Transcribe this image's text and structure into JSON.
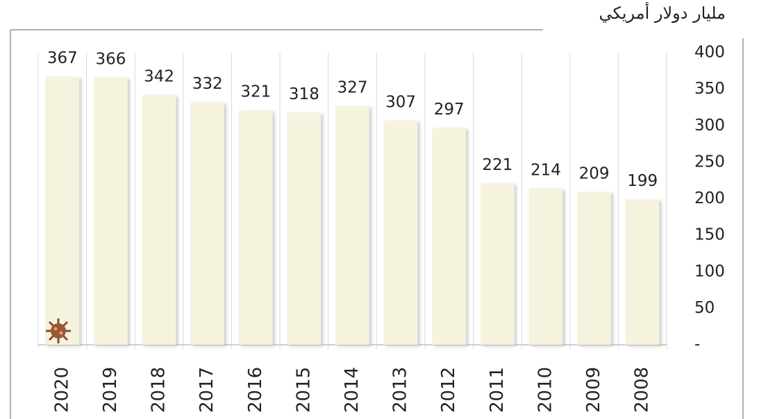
{
  "chart_data": {
    "type": "bar",
    "y_label": "مليار دولار أمريكي",
    "categories": [
      "2020",
      "2019",
      "2018",
      "2017",
      "2016",
      "2015",
      "2014",
      "2013",
      "2012",
      "2011",
      "2010",
      "2009",
      "2008"
    ],
    "values": [
      367,
      366,
      342,
      332,
      321,
      318,
      327,
      307,
      297,
      221,
      214,
      209,
      199
    ],
    "color": "#f5f2de",
    "ylim": [
      0,
      400
    ],
    "yticks": [
      {
        "value": 0,
        "label": "-"
      },
      50,
      100,
      150,
      200,
      250,
      300,
      350,
      400
    ],
    "y_axis_side": "right",
    "grid": false
  }
}
